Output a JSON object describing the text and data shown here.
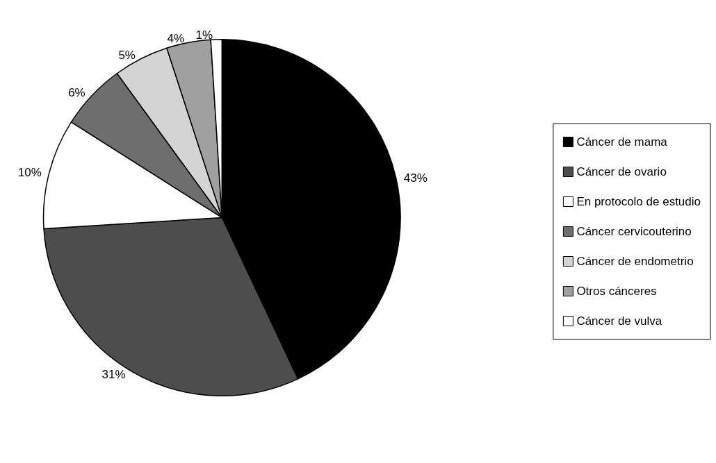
{
  "chart_data": {
    "type": "pie",
    "categories": [
      "Cáncer de mama",
      "Cáncer de ovario",
      "En protocolo de estudio",
      "Cáncer cervicouterino",
      "Cáncer de endometrio",
      "Otros cánceres",
      "Cáncer de vulva"
    ],
    "values": [
      43,
      31,
      10,
      6,
      5,
      4,
      1
    ],
    "colors": [
      "#000000",
      "#4d4d4d",
      "#ffffff",
      "#6e6e6e",
      "#d4d4d4",
      "#a0a0a0",
      "#ffffff"
    ],
    "value_labels": [
      "43%",
      "31%",
      "10%",
      "6%",
      "5%",
      "4%",
      "1%"
    ],
    "legend": "right"
  }
}
